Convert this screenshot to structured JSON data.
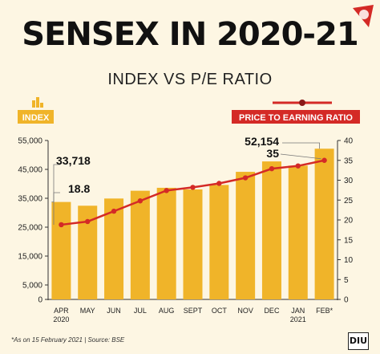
{
  "header": {
    "title": "SENSEX IN 2020-21",
    "subtitle": "INDEX VS P/E RATIO",
    "brand_logo_icon": "india-today-group-icon"
  },
  "legend": {
    "left_label": "INDEX",
    "left_icon": "bar-chart-icon",
    "right_label": "PRICE TO EARNING RATIO",
    "right_icon": "line-marker-icon"
  },
  "footer": {
    "note": "*As on 15 February 2021 | Source: BSE",
    "logo_text": "DIU"
  },
  "colors": {
    "bar": "#f0b429",
    "line": "#d42a26",
    "legend_index_bg": "#f0b429",
    "legend_pe_bg": "#d42a26",
    "background": "#fdf6e3"
  },
  "chart_data": {
    "type": "bar+line",
    "categories": [
      [
        "APR",
        "2020"
      ],
      [
        "MAY"
      ],
      [
        "JUN"
      ],
      [
        "JUL"
      ],
      [
        "AUG"
      ],
      [
        "SEPT"
      ],
      [
        "OCT"
      ],
      [
        "NOV"
      ],
      [
        "DEC"
      ],
      [
        "JAN",
        "2021"
      ],
      [
        "FEB*"
      ]
    ],
    "series": [
      {
        "name": "INDEX",
        "type": "bar",
        "axis": "left",
        "values": [
          33718,
          32424,
          34916,
          37607,
          38628,
          38068,
          39614,
          44150,
          47751,
          46286,
          52154
        ]
      },
      {
        "name": "PRICE TO EARNING RATIO",
        "type": "line",
        "axis": "right",
        "values": [
          18.8,
          19.6,
          22.2,
          24.8,
          27.4,
          28.2,
          29.2,
          30.6,
          32.9,
          33.6,
          35
        ]
      }
    ],
    "left_axis": {
      "ylim": [
        0,
        55000
      ],
      "ticks": [
        "0",
        "5,000",
        "15,000",
        "25,000",
        "35,000",
        "45,000",
        "55,000"
      ]
    },
    "right_axis": {
      "ylim": [
        0,
        40
      ],
      "ticks": [
        "0",
        "5",
        "10",
        "15",
        "20",
        "25",
        "30",
        "35",
        "40"
      ]
    },
    "annotations": [
      {
        "text": "33,718",
        "target": "bar",
        "index": 0
      },
      {
        "text": "18.8",
        "target": "line",
        "index": 0
      },
      {
        "text": "52,154",
        "target": "bar",
        "index": 10
      },
      {
        "text": "35",
        "target": "line",
        "index": 10
      }
    ],
    "grid": false
  }
}
